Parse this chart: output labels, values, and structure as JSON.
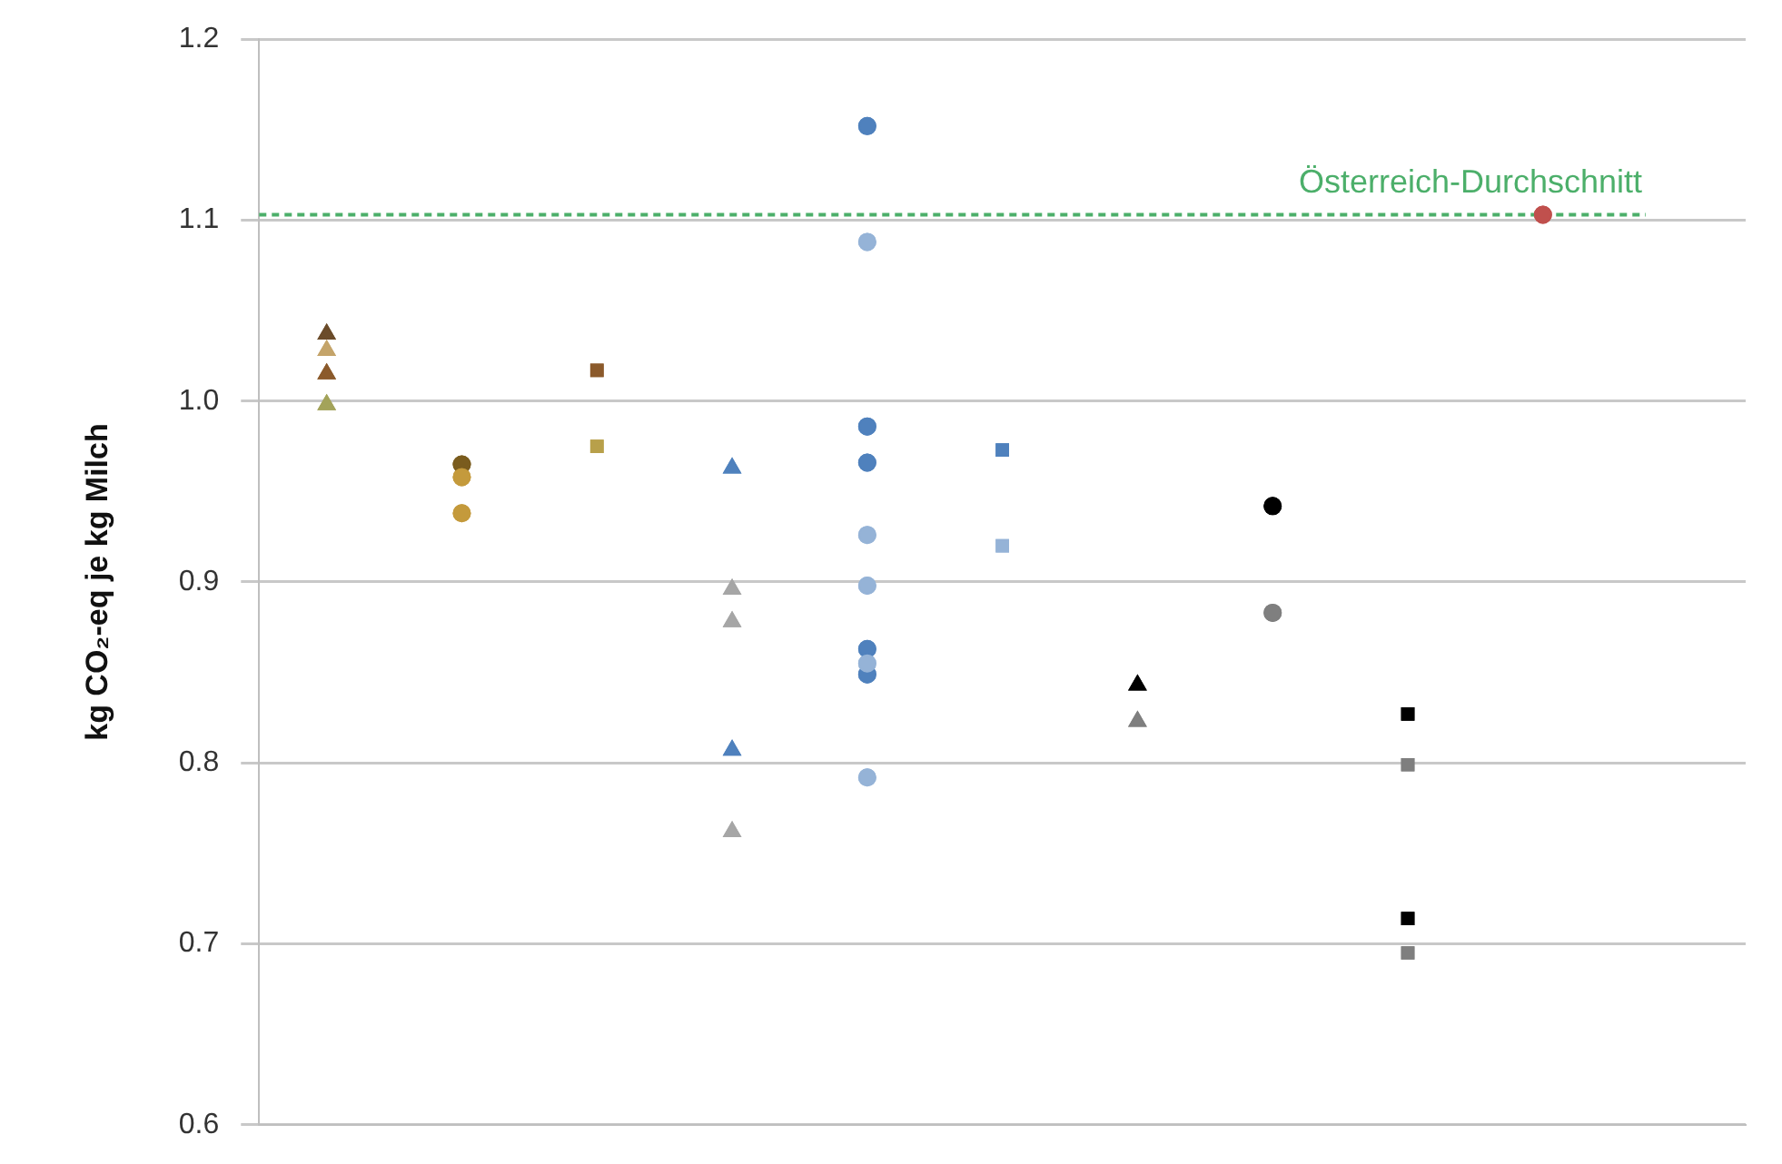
{
  "chart_data": {
    "type": "scatter",
    "ylabel": "kg CO₂-eq je kg Milch",
    "categories": [
      null,
      null,
      null,
      null,
      null,
      null,
      null,
      null,
      null,
      null,
      null
    ],
    "ylim": [
      0.6,
      1.2
    ],
    "yticks": [
      {
        "value": 0.6,
        "label": "0.6"
      },
      {
        "value": 0.7,
        "label": "0.7"
      },
      {
        "value": 0.8,
        "label": "0.8"
      },
      {
        "value": 0.9,
        "label": "0.9"
      },
      {
        "value": 1.0,
        "label": "1.0"
      },
      {
        "value": 1.1,
        "label": "1.1"
      },
      {
        "value": 1.2,
        "label": "1.2"
      }
    ],
    "grid": "y",
    "legend": false,
    "tick_labels": "y",
    "ref_lines": [
      {
        "axis": "y",
        "value": 1.103,
        "label": "Österreich-Durchschnitt",
        "color": "#4caf6a",
        "line_style": "dashed"
      }
    ],
    "series": [
      {
        "color": "#6b4c2a",
        "marker": "triangle",
        "values": [
          1.037,
          null,
          null,
          null,
          null,
          null,
          null,
          null,
          null,
          null,
          null
        ]
      },
      {
        "color": "#c4a46a",
        "marker": "triangle",
        "values": [
          1.028,
          null,
          null,
          null,
          null,
          null,
          null,
          null,
          null,
          null,
          null
        ]
      },
      {
        "color": "#8b5a2b",
        "marker": "triangle",
        "values": [
          1.015,
          null,
          null,
          null,
          null,
          null,
          null,
          null,
          null,
          null,
          null
        ]
      },
      {
        "color": "#a3a35a",
        "marker": "triangle",
        "values": [
          0.998,
          null,
          null,
          null,
          null,
          null,
          null,
          null,
          null,
          null,
          null
        ]
      },
      {
        "color": "#7a5c1e",
        "marker": "circle",
        "values": [
          null,
          0.965,
          null,
          null,
          null,
          null,
          null,
          null,
          null,
          null,
          null
        ]
      },
      {
        "color": "#c49a3c",
        "marker": "circle",
        "values": [
          null,
          0.958,
          null,
          null,
          null,
          null,
          null,
          null,
          null,
          null,
          null
        ]
      },
      {
        "color": "#c49a3c",
        "marker": "circle",
        "values": [
          null,
          0.938,
          null,
          null,
          null,
          null,
          null,
          null,
          null,
          null,
          null
        ]
      },
      {
        "color": "#8b5a2b",
        "marker": "square",
        "values": [
          null,
          null,
          1.017,
          null,
          null,
          null,
          null,
          null,
          null,
          null,
          null
        ]
      },
      {
        "color": "#b8a04a",
        "marker": "square",
        "values": [
          null,
          null,
          0.975,
          null,
          null,
          null,
          null,
          null,
          null,
          null,
          null
        ]
      },
      {
        "color": "#4f81bd",
        "marker": "triangle",
        "values": [
          null,
          null,
          null,
          0.963,
          null,
          null,
          null,
          null,
          null,
          null,
          null
        ]
      },
      {
        "color": "#4f81bd",
        "marker": "triangle",
        "values": [
          null,
          null,
          null,
          0.807,
          null,
          null,
          null,
          null,
          null,
          null,
          null
        ]
      },
      {
        "color": "#a6a6a6",
        "marker": "triangle",
        "values": [
          null,
          null,
          null,
          0.896,
          null,
          null,
          null,
          null,
          null,
          null,
          null
        ]
      },
      {
        "color": "#a6a6a6",
        "marker": "triangle",
        "values": [
          null,
          null,
          null,
          0.878,
          null,
          null,
          null,
          null,
          null,
          null,
          null
        ]
      },
      {
        "color": "#a6a6a6",
        "marker": "triangle",
        "values": [
          null,
          null,
          null,
          0.762,
          null,
          null,
          null,
          null,
          null,
          null,
          null
        ]
      },
      {
        "color": "#4f81bd",
        "marker": "circle",
        "values": [
          null,
          null,
          null,
          null,
          0.986,
          null,
          null,
          null,
          null,
          null,
          null
        ]
      },
      {
        "color": "#4f81bd",
        "marker": "circle",
        "values": [
          null,
          null,
          null,
          null,
          0.966,
          null,
          null,
          null,
          null,
          null,
          null
        ]
      },
      {
        "color": "#4f81bd",
        "marker": "circle",
        "values": [
          null,
          null,
          null,
          null,
          0.863,
          null,
          null,
          null,
          null,
          null,
          null
        ]
      },
      {
        "color": "#4f81bd",
        "marker": "circle",
        "values": [
          null,
          null,
          null,
          null,
          0.849,
          null,
          null,
          null,
          null,
          null,
          null
        ]
      },
      {
        "color": "#4f81bd",
        "marker": "circle",
        "values": [
          null,
          null,
          null,
          null,
          1.152,
          null,
          null,
          null,
          null,
          null,
          null
        ]
      },
      {
        "color": "#95b3d7",
        "marker": "circle",
        "values": [
          null,
          null,
          null,
          null,
          1.088,
          null,
          null,
          null,
          null,
          null,
          null
        ]
      },
      {
        "color": "#95b3d7",
        "marker": "circle",
        "values": [
          null,
          null,
          null,
          null,
          0.926,
          null,
          null,
          null,
          null,
          null,
          null
        ]
      },
      {
        "color": "#95b3d7",
        "marker": "circle",
        "values": [
          null,
          null,
          null,
          null,
          0.898,
          null,
          null,
          null,
          null,
          null,
          null
        ]
      },
      {
        "color": "#95b3d7",
        "marker": "circle",
        "values": [
          null,
          null,
          null,
          null,
          0.855,
          null,
          null,
          null,
          null,
          null,
          null
        ]
      },
      {
        "color": "#95b3d7",
        "marker": "circle",
        "values": [
          null,
          null,
          null,
          null,
          0.792,
          null,
          null,
          null,
          null,
          null,
          null
        ]
      },
      {
        "color": "#4f81bd",
        "marker": "square",
        "values": [
          null,
          null,
          null,
          null,
          null,
          0.973,
          null,
          null,
          null,
          null,
          null
        ]
      },
      {
        "color": "#95b3d7",
        "marker": "square",
        "values": [
          null,
          null,
          null,
          null,
          null,
          0.92,
          null,
          null,
          null,
          null,
          null
        ]
      },
      {
        "color": "#000000",
        "marker": "triangle",
        "values": [
          null,
          null,
          null,
          null,
          null,
          null,
          0.843,
          null,
          null,
          null,
          null
        ]
      },
      {
        "color": "#7f7f7f",
        "marker": "triangle",
        "values": [
          null,
          null,
          null,
          null,
          null,
          null,
          0.823,
          null,
          null,
          null,
          null
        ]
      },
      {
        "color": "#000000",
        "marker": "circle",
        "values": [
          null,
          null,
          null,
          null,
          null,
          null,
          null,
          0.942,
          null,
          null,
          null
        ]
      },
      {
        "color": "#7f7f7f",
        "marker": "circle",
        "values": [
          null,
          null,
          null,
          null,
          null,
          null,
          null,
          0.883,
          null,
          null,
          null
        ]
      },
      {
        "color": "#000000",
        "marker": "square",
        "values": [
          null,
          null,
          null,
          null,
          null,
          null,
          null,
          null,
          0.827,
          null,
          null
        ]
      },
      {
        "color": "#7f7f7f",
        "marker": "square",
        "values": [
          null,
          null,
          null,
          null,
          null,
          null,
          null,
          null,
          0.799,
          null,
          null
        ]
      },
      {
        "color": "#000000",
        "marker": "square",
        "values": [
          null,
          null,
          null,
          null,
          null,
          null,
          null,
          null,
          0.714,
          null,
          null
        ]
      },
      {
        "color": "#7f7f7f",
        "marker": "square",
        "values": [
          null,
          null,
          null,
          null,
          null,
          null,
          null,
          null,
          0.695,
          null,
          null
        ]
      },
      {
        "color": "#c0504d",
        "marker": "circle",
        "values": [
          null,
          null,
          null,
          null,
          null,
          null,
          null,
          null,
          null,
          1.103,
          null
        ]
      }
    ]
  }
}
